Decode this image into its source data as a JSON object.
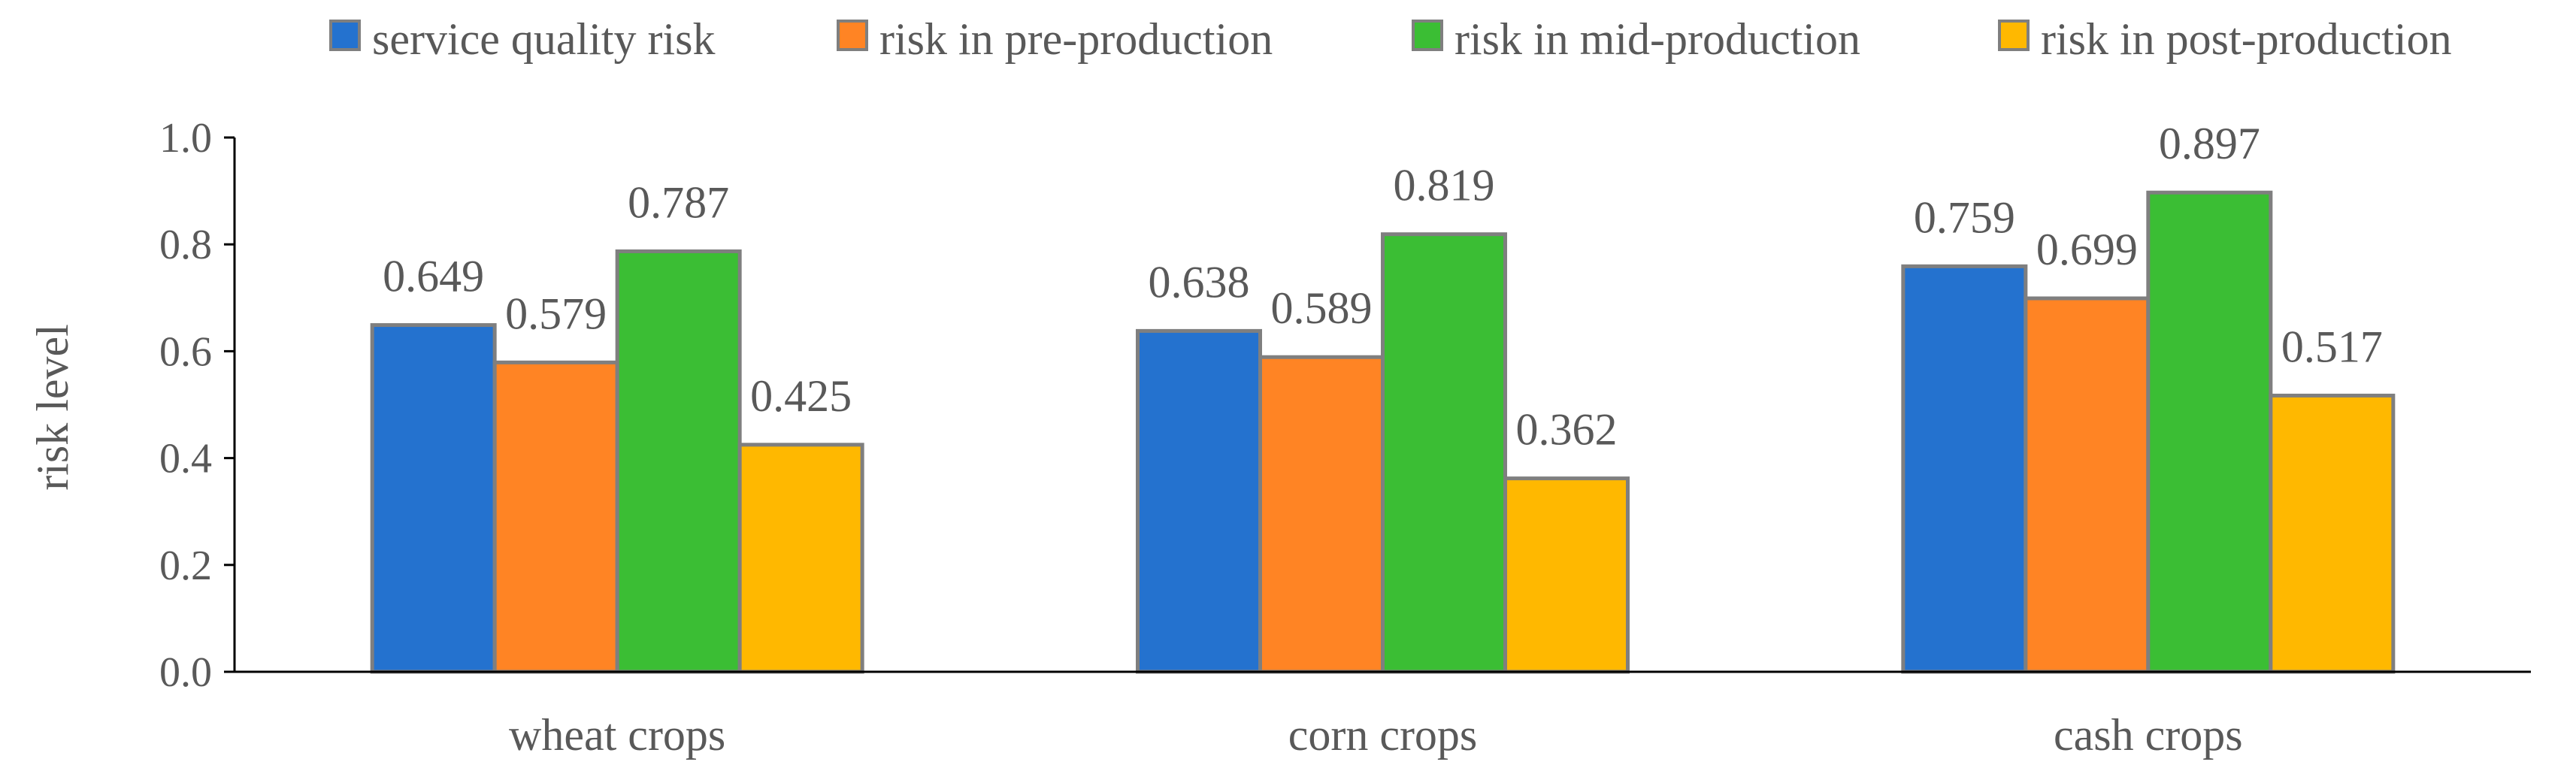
{
  "chart_data": {
    "type": "bar",
    "title": "",
    "xlabel": "",
    "ylabel": "risk level",
    "ylim": [
      0,
      1.0
    ],
    "yticks": [
      "0.0",
      "0.2",
      "0.4",
      "0.6",
      "0.8",
      "1.0"
    ],
    "grid": false,
    "legend_position": "top",
    "categories": [
      "wheat crops",
      "corn crops",
      "cash crops"
    ],
    "series": [
      {
        "name": "service quality risk",
        "color": "#2472CF",
        "values": [
          0.649,
          0.638,
          0.759
        ],
        "labels": [
          "0.649",
          "0.638",
          "0.759"
        ]
      },
      {
        "name": "risk in pre-production",
        "color": "#FF8424",
        "values": [
          0.579,
          0.589,
          0.699
        ],
        "labels": [
          "0.579",
          "0.589",
          "0.699"
        ]
      },
      {
        "name": "risk in mid-production",
        "color": "#3BBE34",
        "values": [
          0.787,
          0.819,
          0.897
        ],
        "labels": [
          "0.787",
          "0.819",
          "0.897"
        ]
      },
      {
        "name": "risk in post-production",
        "color": "#FFB800",
        "values": [
          0.425,
          0.362,
          0.517
        ],
        "labels": [
          "0.425",
          "0.362",
          "0.517"
        ]
      }
    ],
    "bar_edge_color": "#7F7F7F",
    "axis_color": "#000000",
    "text_color": "#595959"
  }
}
